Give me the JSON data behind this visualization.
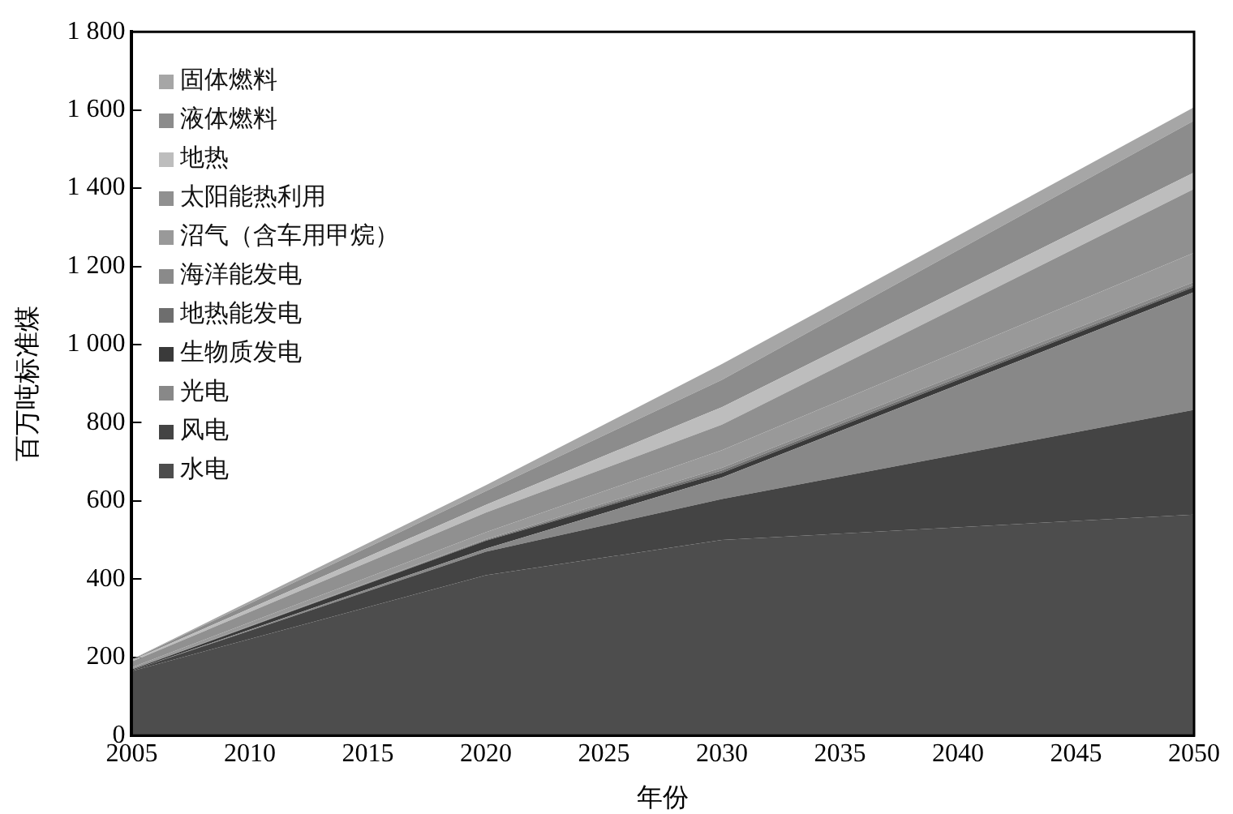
{
  "chart_data": {
    "type": "area",
    "stacked": true,
    "xlabel": "年份",
    "ylabel": "百万吨标准煤",
    "x": [
      2005,
      2020,
      2030,
      2050
    ],
    "series": [
      {
        "name": "水电",
        "color": "#4d4d4d",
        "values": [
          165,
          410,
          500,
          565
        ]
      },
      {
        "name": "风电",
        "color": "#444444",
        "values": [
          2,
          60,
          105,
          268
        ]
      },
      {
        "name": "光电",
        "color": "#888888",
        "values": [
          0,
          8,
          55,
          301
        ]
      },
      {
        "name": "生物质发电",
        "color": "#3a3a3a",
        "values": [
          2,
          20,
          12,
          13
        ]
      },
      {
        "name": "地热能发电",
        "color": "#6e6e6e",
        "values": [
          0,
          2,
          6,
          5
        ]
      },
      {
        "name": "海洋能发电",
        "color": "#8a8a8a",
        "values": [
          0,
          2,
          7,
          8
        ]
      },
      {
        "name": "沼气（含车用甲烷）",
        "color": "#999999",
        "values": [
          5,
          18,
          45,
          75
        ]
      },
      {
        "name": "太阳能热利用",
        "color": "#909090",
        "values": [
          15,
          50,
          65,
          163
        ]
      },
      {
        "name": "地热",
        "color": "#bdbdbd",
        "values": [
          3,
          20,
          45,
          42
        ]
      },
      {
        "name": "液体燃料",
        "color": "#8c8c8c",
        "values": [
          2,
          35,
          70,
          133
        ]
      },
      {
        "name": "固体燃料",
        "color": "#a6a6a6",
        "values": [
          1,
          15,
          40,
          34
        ]
      }
    ],
    "xlim": [
      2005,
      2050
    ],
    "xticks": [
      2005,
      2010,
      2015,
      2020,
      2025,
      2030,
      2035,
      2040,
      2045,
      2050
    ],
    "ylim": [
      0,
      1800
    ],
    "yticks": [
      0,
      200,
      400,
      600,
      800,
      {
        "value": 1000,
        "label": "1 000"
      },
      {
        "value": 1200,
        "label": "1 200"
      },
      {
        "value": 1400,
        "label": "1 400"
      },
      {
        "value": 1600,
        "label": "1 600"
      },
      {
        "value": 1800,
        "label": "1 800"
      }
    ],
    "grid": false,
    "legend": "top left"
  }
}
